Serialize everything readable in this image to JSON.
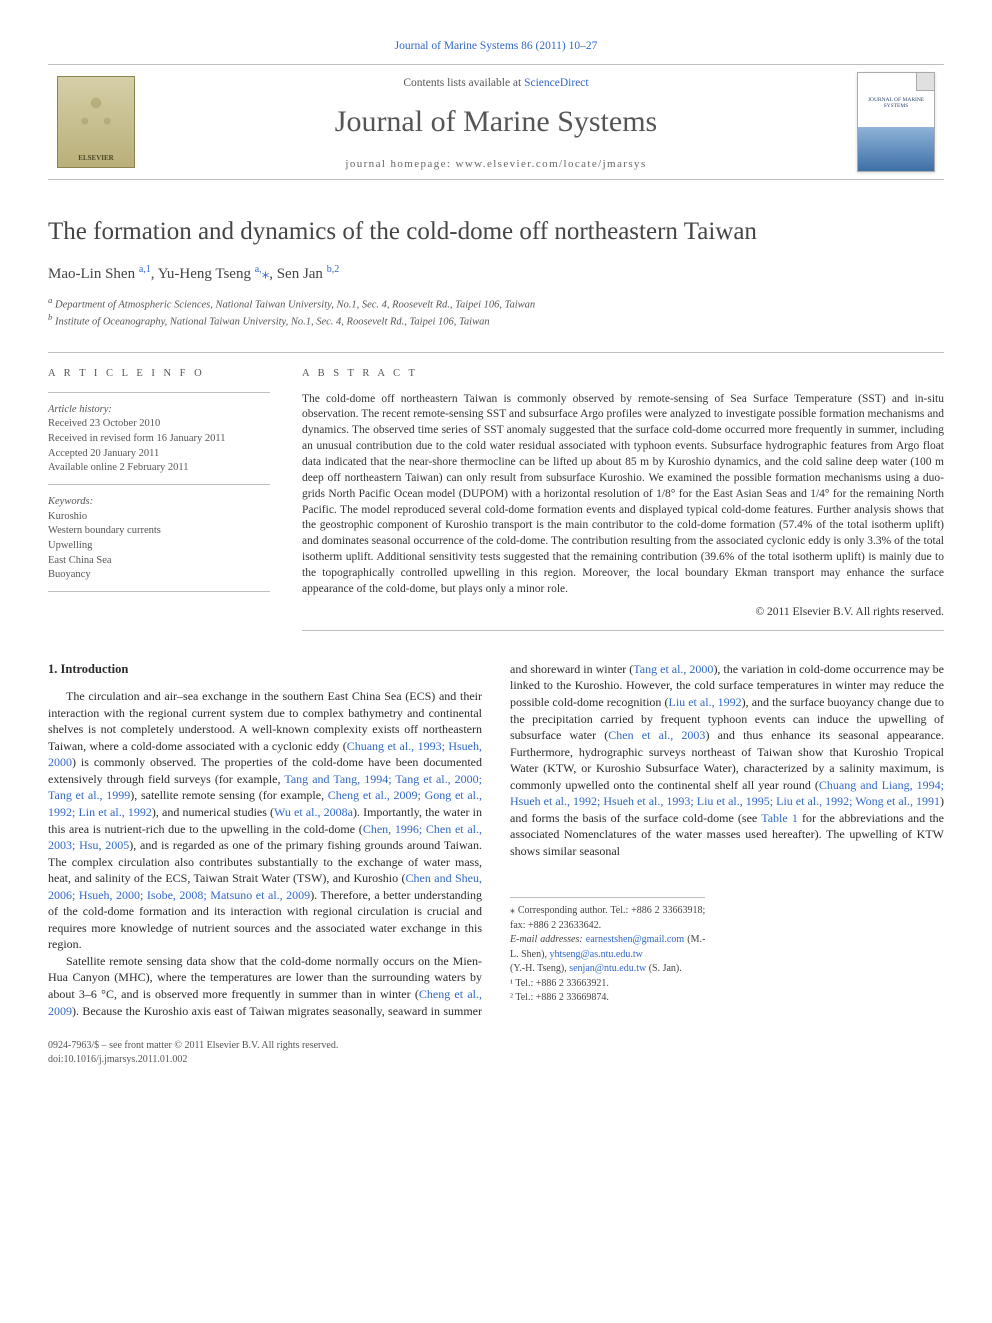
{
  "journal": {
    "citation": "Journal of Marine Systems 86 (2011) 10–27",
    "contents_line_prefix": "Contents lists available at ",
    "contents_line_link": "ScienceDirect",
    "name": "Journal of Marine Systems",
    "homepage": "journal homepage: www.elsevier.com/locate/jmarsys",
    "publisher_logo_label": "ELSEVIER",
    "cover_caption": "JOURNAL OF MARINE SYSTEMS"
  },
  "title": "The formation and dynamics of the cold-dome off northeastern Taiwan",
  "authors_html": "Mao-Lin Shen <sup>a,1</sup>, Yu-Heng Tseng <sup>a,</sup><span class='star'>⁎</span>, Sen Jan <sup>b,2</sup>",
  "affiliations": [
    "a Department of Atmospheric Sciences, National Taiwan University, No.1, Sec. 4, Roosevelt Rd., Taipei 106, Taiwan",
    "b Institute of Oceanography, National Taiwan University, No.1, Sec. 4, Roosevelt Rd., Taipei 106, Taiwan"
  ],
  "article_info": {
    "heading": "A R T I C L E   I N F O",
    "history_label": "Article history:",
    "history": [
      "Received 23 October 2010",
      "Received in revised form 16 January 2011",
      "Accepted 20 January 2011",
      "Available online 2 February 2011"
    ],
    "keywords_label": "Keywords:",
    "keywords": [
      "Kuroshio",
      "Western boundary currents",
      "Upwelling",
      "East China Sea",
      "Buoyancy"
    ]
  },
  "abstract": {
    "heading": "A B S T R A C T",
    "text": "The cold-dome off northeastern Taiwan is commonly observed by remote-sensing of Sea Surface Temperature (SST) and in-situ observation. The recent remote-sensing SST and subsurface Argo profiles were analyzed to investigate possible formation mechanisms and dynamics. The observed time series of SST anomaly suggested that the surface cold-dome occurred more frequently in summer, including an unusual contribution due to the cold water residual associated with typhoon events. Subsurface hydrographic features from Argo float data indicated that the near-shore thermocline can be lifted up about 85 m by Kuroshio dynamics, and the cold saline deep water (100 m deep off northeastern Taiwan) can only result from subsurface Kuroshio. We examined the possible formation mechanisms using a duo-grids North Pacific Ocean model (DUPOM) with a horizontal resolution of 1/8° for the East Asian Seas and 1/4° for the remaining North Pacific. The model reproduced several cold-dome formation events and displayed typical cold-dome features. Further analysis shows that the geostrophic component of Kuroshio transport is the main contributor to the cold-dome formation (57.4% of the total isotherm uplift) and dominates seasonal occurrence of the cold-dome. The contribution resulting from the associated cyclonic eddy is only 3.3% of the total isotherm uplift. Additional sensitivity tests suggested that the remaining contribution (39.6% of the total isotherm uplift) is mainly due to the topographically controlled upwelling in this region. Moreover, the local boundary Ekman transport may enhance the surface appearance of the cold-dome, but plays only a minor role.",
    "copyright": "© 2011 Elsevier B.V. All rights reserved."
  },
  "section1": {
    "heading": "1. Introduction",
    "para1_pre": "The circulation and air–sea exchange in the southern East China Sea (ECS) and their interaction with the regional current system due to complex bathymetry and continental shelves is not completely understood. A well-known complexity exists off northeastern Taiwan, where a cold-dome associated with a cyclonic eddy (",
    "para1_l1": "Chuang et al., 1993; Hsueh, 2000",
    "para1_mid1": ") is commonly observed. The properties of the cold-dome have been documented extensively through field surveys (for example, ",
    "para1_l2": "Tang and Tang, 1994; Tang et al., 2000; Tang et al., 1999",
    "para1_mid2": "), satellite remote sensing (for example, ",
    "para1_l3": "Cheng et al., 2009; Gong et al., 1992; Lin et al., 1992",
    "para1_mid3": "), and numerical studies (",
    "para1_l4": "Wu et al., 2008a",
    "para1_mid4": "). Importantly, the water in this area is nutrient-rich due to the upwelling in the cold-dome (",
    "para1_l5": "Chen, 1996; Chen et al., 2003; Hsu, 2005",
    "para1_mid5": "), and is regarded as one of the primary fishing grounds around Taiwan. The complex circulation also contributes substantially to the exchange of water mass, heat, and salinity of the ECS, Taiwan Strait Water (TSW), and Kuroshio (",
    "para1_l6": "Chen and Sheu, 2006; Hsueh, 2000; Isobe, 2008; Matsuno et al., 2009",
    "para1_post": "). Therefore, a better understanding of the cold-dome formation and its interaction with regional circulation is crucial and requires more knowledge of nutrient sources and the associated water exchange in this region.",
    "para2_pre": "Satellite remote sensing data show that the cold-dome normally occurs on the Mien-Hua Canyon (MHC), where the temperatures are lower than the surrounding waters by about 3–6 °C, and is observed more frequently in summer than in winter (",
    "para2_l1": "Cheng et al., 2009",
    "para2_mid1": "). Because the Kuroshio axis east of Taiwan migrates seasonally, seaward in summer and shoreward in winter (",
    "para2_l2": "Tang et al., 2000",
    "para2_mid2": "), the variation in cold-dome occurrence may be linked to the Kuroshio. However, the cold surface temperatures in winter may reduce the possible cold-dome recognition (",
    "para2_l3": "Liu et al., 1992",
    "para2_mid3": "), and the surface buoyancy change due to the precipitation carried by frequent typhoon events can induce the upwelling of subsurface water (",
    "para2_l4": "Chen et al., 2003",
    "para2_mid4": ") and thus enhance its seasonal appearance. Furthermore, hydrographic surveys northeast of Taiwan show that Kuroshio Tropical Water (KTW, or Kuroshio Subsurface Water), characterized by a salinity maximum, is commonly upwelled onto the continental shelf all year round (",
    "para2_l5": "Chuang and Liang, 1994; Hsueh et al., 1992; Hsueh et al., 1993; Liu et al., 1995; Liu et al., 1992; Wong et al., 1991",
    "para2_mid5": ") and forms the basis of the surface cold-dome (see ",
    "para2_l6": "Table 1",
    "para2_post": " for the abbreviations and the associated Nomenclatures of the water masses used hereafter). The upwelling of KTW shows similar seasonal"
  },
  "footnotes": {
    "corr": "⁎ Corresponding author. Tel.: +886 2 33663918; fax: +886 2 23633642.",
    "emails_label": "E-mail addresses:",
    "email1": "earnestshen@gmail.com",
    "email1_who": " (M.-L. Shen), ",
    "email2": "yhtseng@as.ntu.edu.tw",
    "email2_who": " (Y.-H. Tseng), ",
    "email3": "senjan@ntu.edu.tw",
    "email3_who": " (S. Jan).",
    "tel1": "¹ Tel.: +886 2 33663921.",
    "tel2": "² Tel.: +886 2 33669874."
  },
  "footer": {
    "left1": "0924-7963/$ – see front matter © 2011 Elsevier B.V. All rights reserved.",
    "left2": "doi:10.1016/j.jmarsys.2011.01.002"
  },
  "colors": {
    "link": "#3168c8",
    "rule": "#bdbdbd",
    "text": "#2a2a2a",
    "muted": "#555555"
  }
}
